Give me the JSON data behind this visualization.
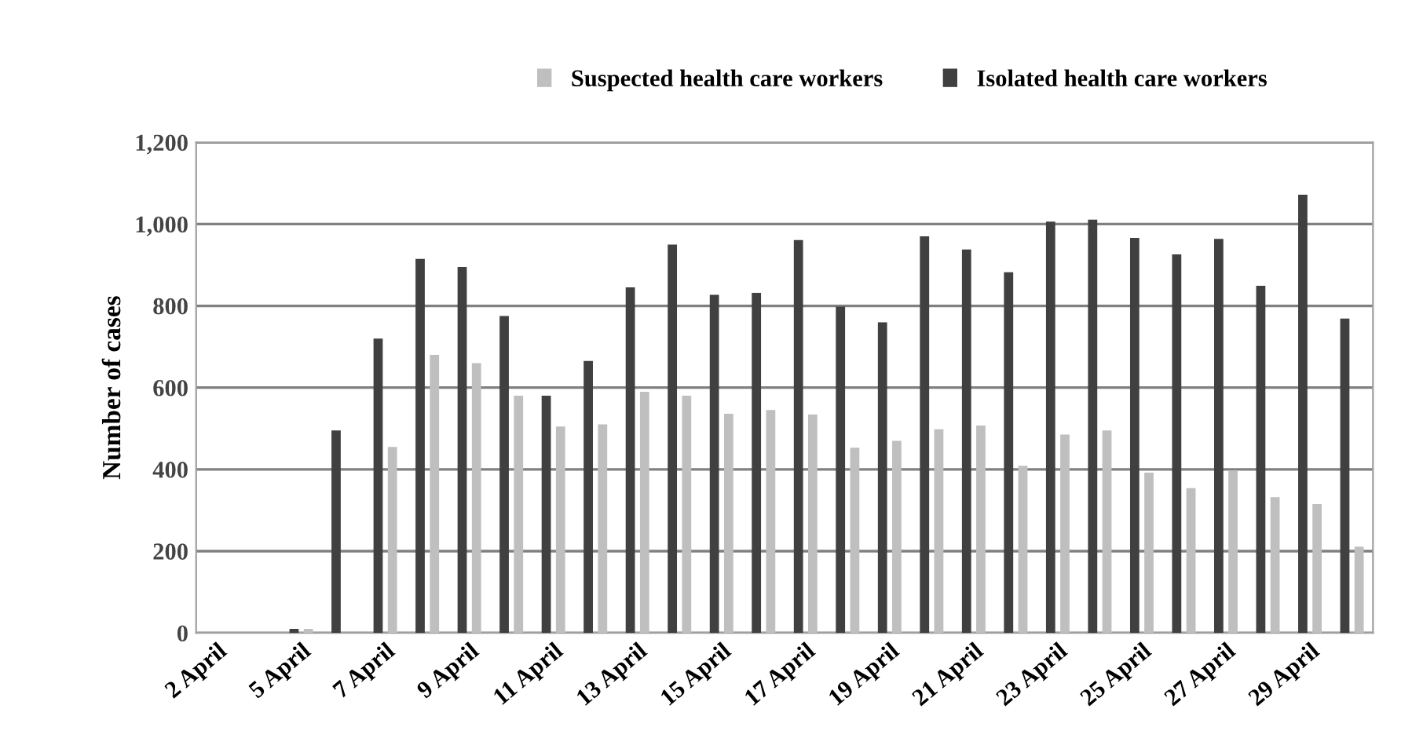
{
  "chart_data": {
    "type": "bar",
    "ylabel": "Number of cases",
    "categories": [
      "2 April",
      null,
      "5 April",
      null,
      "7 April",
      null,
      "9 April",
      null,
      "11 April",
      null,
      "13 April",
      null,
      "15 April",
      null,
      "17 April",
      null,
      "19 April",
      null,
      "21 April",
      null,
      "23 April",
      null,
      "25 April",
      null,
      "27 April",
      null,
      "29 April",
      null
    ],
    "series": [
      {
        "name": "Suspected health care workers",
        "color": "#bfbfbf",
        "values": [
          0,
          0,
          10,
          0,
          455,
          680,
          660,
          580,
          505,
          510,
          590,
          580,
          536,
          545,
          534,
          453,
          470,
          498,
          507,
          409,
          485,
          495,
          392,
          354,
          396,
          332,
          315,
          211
        ]
      },
      {
        "name": "Isolated health care workers",
        "color": "#404040",
        "values": [
          0,
          0,
          10,
          495,
          720,
          915,
          895,
          775,
          580,
          665,
          845,
          950,
          827,
          832,
          961,
          798,
          760,
          970,
          938,
          882,
          1006,
          1011,
          966,
          926,
          964,
          849,
          1072,
          769
        ]
      }
    ],
    "ylim": [
      0,
      1200
    ],
    "yticks": [
      0,
      {
        "value": 200,
        "label": "200"
      },
      {
        "value": 400,
        "label": "400"
      },
      {
        "value": 600,
        "label": "600"
      },
      {
        "value": 800,
        "label": "800"
      },
      {
        "value": 1000,
        "label": "1,000"
      },
      {
        "value": 1200,
        "label": "1,200"
      }
    ],
    "grid": "y",
    "legend": "top"
  }
}
